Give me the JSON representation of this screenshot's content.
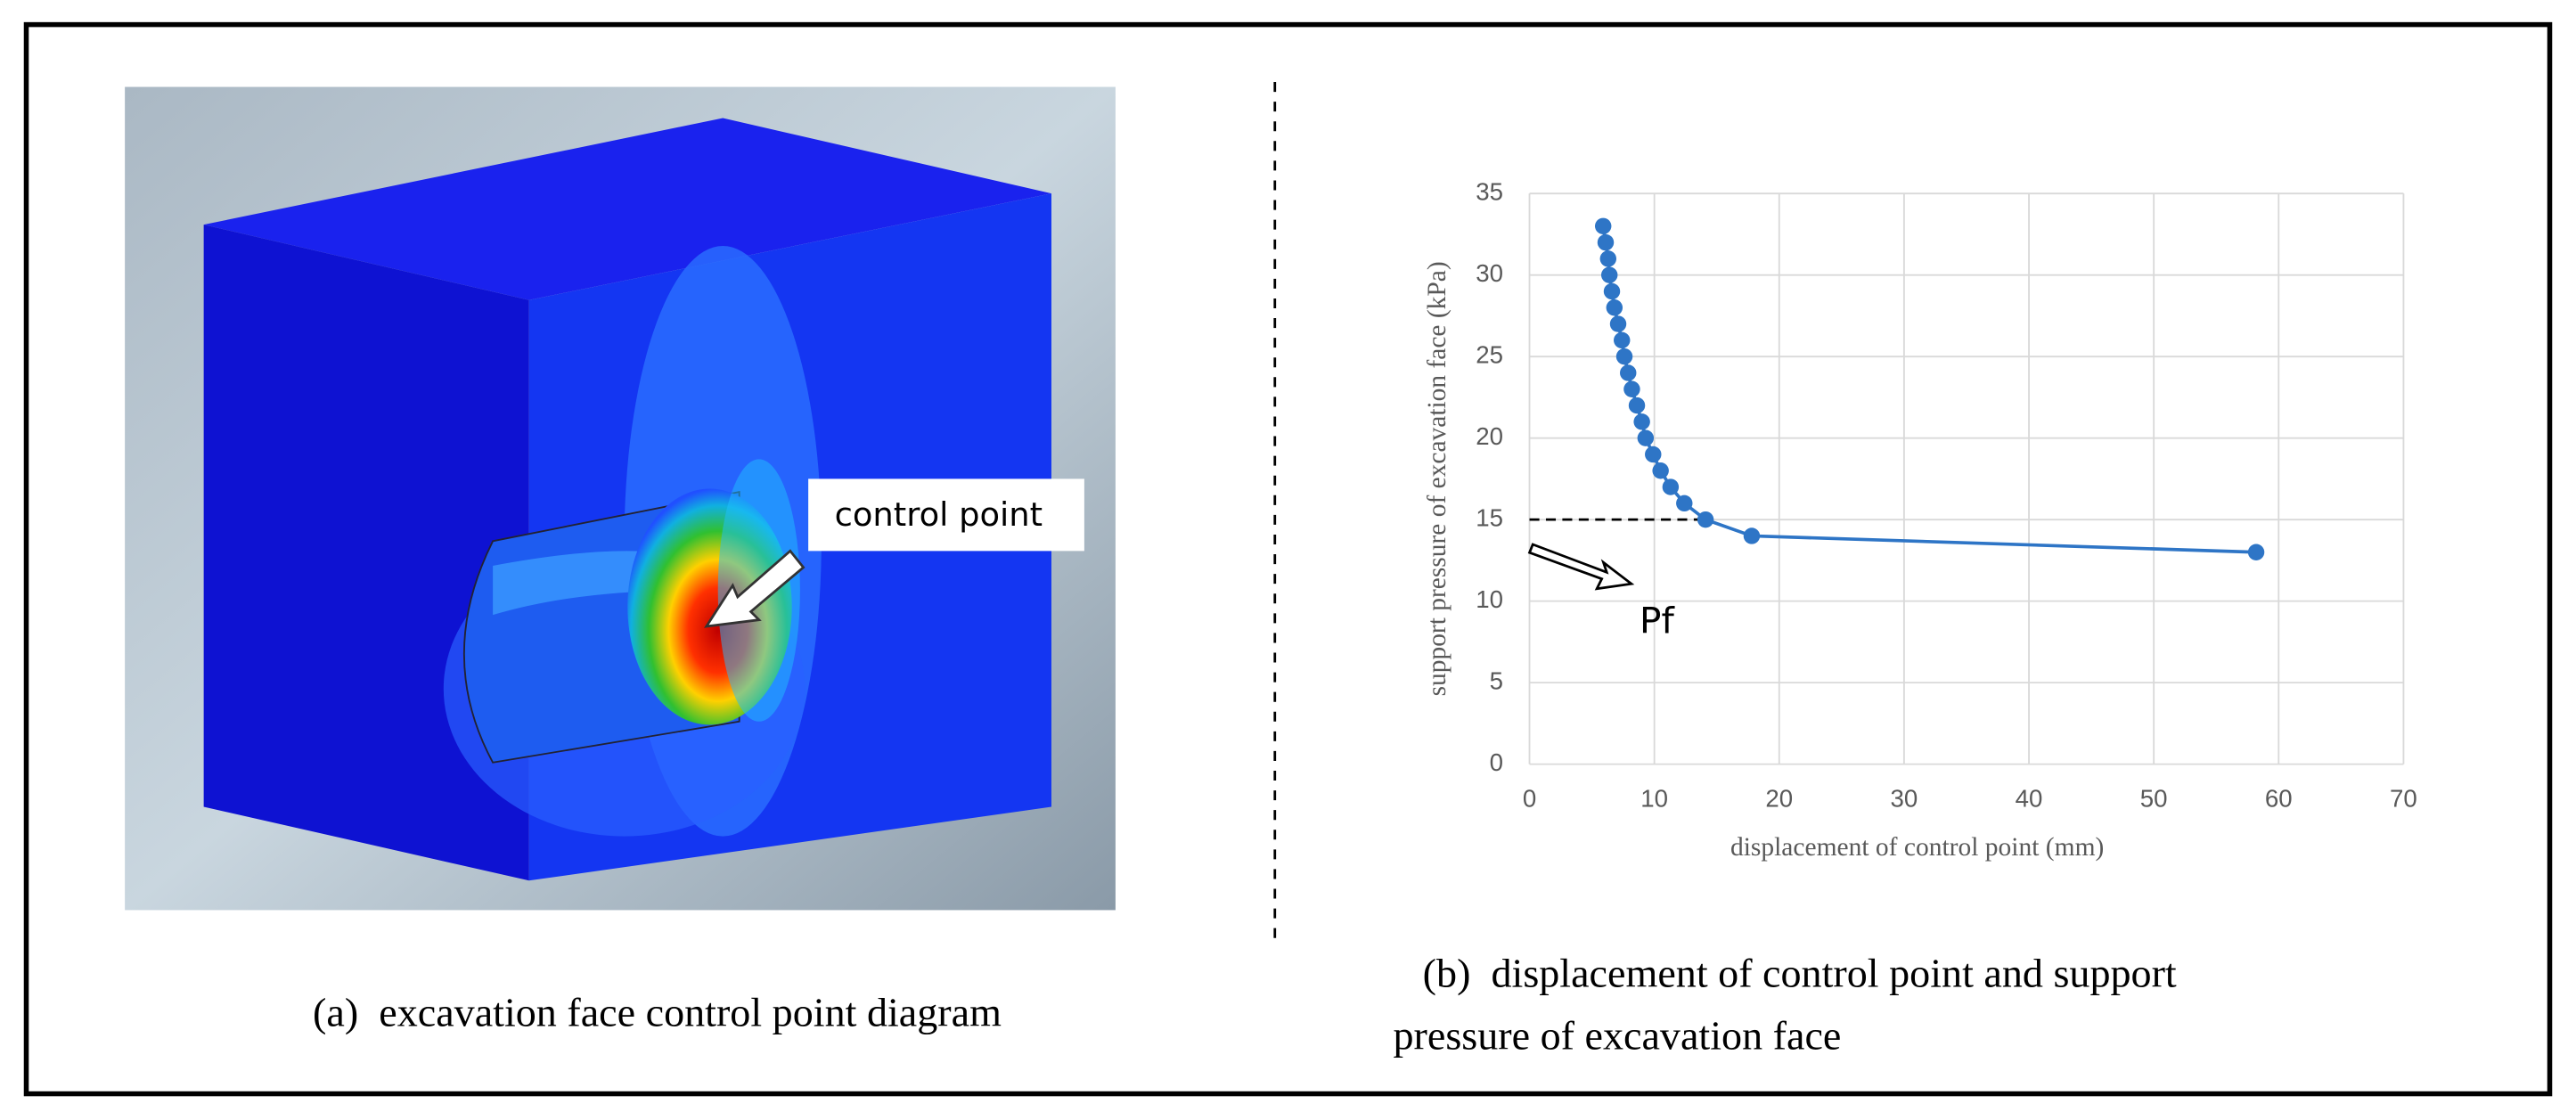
{
  "panel_a": {
    "annotation": "control point",
    "caption": "(a)  excavation face control point diagram"
  },
  "chart_data": {
    "type": "line",
    "x_label": "displacement of control point (mm)",
    "y_label": "support pressure of excavation face (kPa)",
    "annotation": "Pf",
    "x": [
      5.9,
      6.1,
      6.3,
      6.4,
      6.6,
      6.8,
      7.1,
      7.4,
      7.6,
      7.9,
      8.2,
      8.6,
      9.0,
      9.3,
      9.9,
      10.5,
      11.3,
      12.4,
      14.1,
      17.8,
      58.2
    ],
    "values": [
      33,
      32,
      31,
      30,
      29,
      28,
      27,
      26,
      25,
      24,
      23,
      22,
      21,
      20,
      19,
      18,
      17,
      16,
      15,
      14,
      13
    ],
    "color": "#2e75c6",
    "xlim": [
      0,
      70
    ],
    "xticks": [
      0,
      10,
      20,
      30,
      40,
      50,
      60,
      70
    ],
    "ylim": [
      0,
      35
    ],
    "yticks": [
      0,
      5,
      10,
      15,
      20,
      25,
      30,
      35
    ],
    "grid": true
  },
  "panel_b": {
    "caption_lines": [
      "(b)  displacement of control point and support",
      "pressure of excavation face"
    ]
  }
}
